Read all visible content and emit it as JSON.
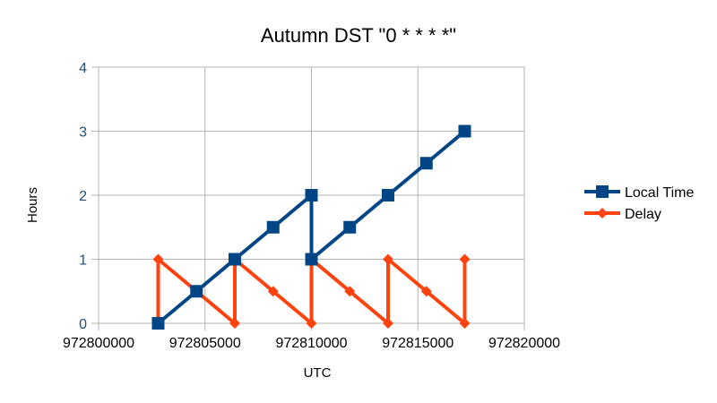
{
  "chart_data": {
    "type": "line",
    "title": "Autumn DST \"0 * * * *\"",
    "xlabel": "UTC",
    "ylabel": "Hours",
    "xlim": [
      972800000,
      972820000
    ],
    "ylim": [
      0,
      4
    ],
    "xticks": [
      "972800000",
      "972805000",
      "972810000",
      "972815000",
      "972820000"
    ],
    "yticks": [
      "0",
      "1",
      "2",
      "3",
      "4"
    ],
    "grid": true,
    "legend": "right",
    "series": [
      {
        "name": "Local Time",
        "color": "#004586",
        "marker": "square",
        "x": [
          972802800,
          972804600,
          972806400,
          972808200,
          972810000,
          972810000,
          972811800,
          972813600,
          972815400,
          972817200
        ],
        "y": [
          0,
          0.5,
          1,
          1.5,
          2,
          1,
          1.5,
          2,
          2.5,
          3
        ]
      },
      {
        "name": "Delay",
        "color": "#ff420e",
        "marker": "diamond",
        "x": [
          972802800,
          972802800,
          972804600,
          972806400,
          972806400,
          972808200,
          972810000,
          972810000,
          972811800,
          972813600,
          972813600,
          972815400,
          972817200,
          972817200
        ],
        "y": [
          0,
          1,
          0.5,
          0,
          1,
          0.5,
          0,
          1,
          0.5,
          0,
          1,
          0.5,
          0,
          1
        ]
      }
    ]
  }
}
